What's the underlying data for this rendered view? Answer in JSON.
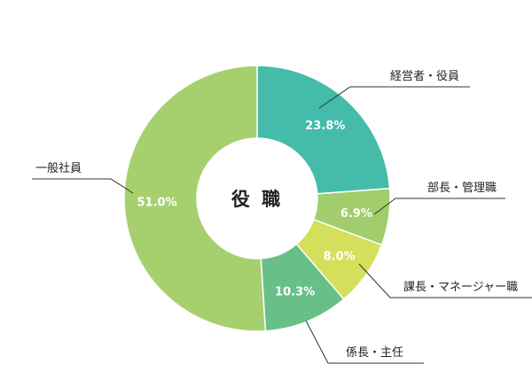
{
  "chart_data": {
    "type": "pie",
    "variant": "donut",
    "center_label": "役 職",
    "categories": [
      "経営者・役員",
      "部長・管理職",
      "課長・マネージャー職",
      "係長・主任",
      "一般社員"
    ],
    "values": [
      23.8,
      6.9,
      8.0,
      10.3,
      51.0
    ],
    "value_labels": [
      "23.8%",
      "6.9%",
      "8.0%",
      "10.3%",
      "51.0%"
    ],
    "colors": [
      "#45bba9",
      "#a1cd6c",
      "#d4e05c",
      "#68c088",
      "#a6d06e"
    ],
    "start_angle_deg": 0,
    "direction": "clockwise"
  }
}
